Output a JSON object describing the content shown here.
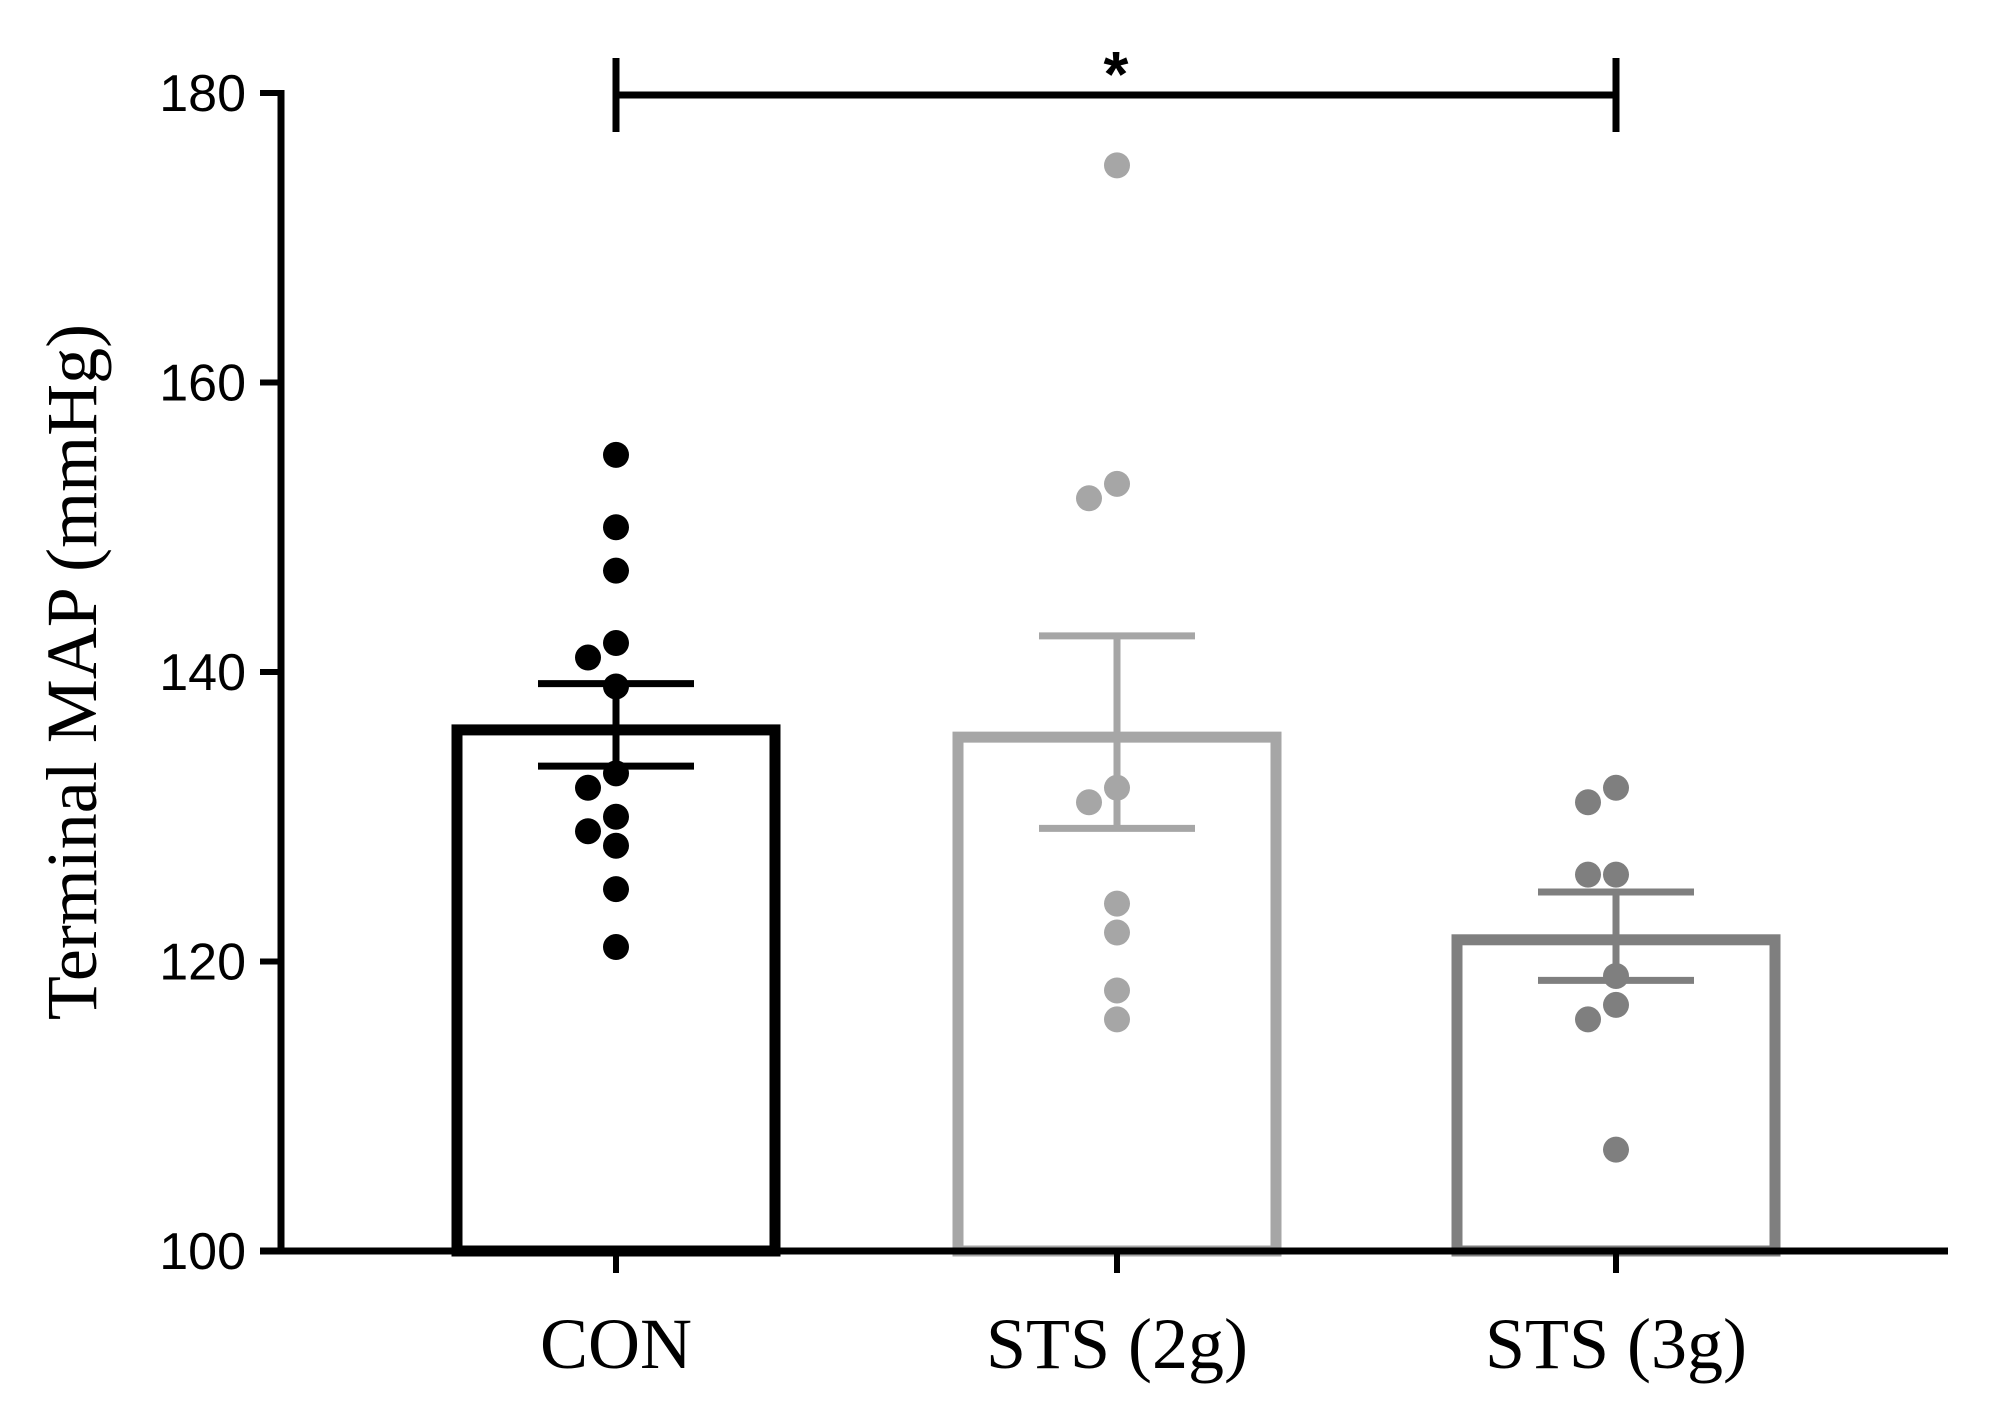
{
  "chart_data": {
    "type": "bar",
    "title": "",
    "xlabel": "",
    "ylabel": "Terminal MAP (mmHg)",
    "ylim": [
      100,
      180
    ],
    "yticks": [
      100,
      120,
      140,
      160,
      180
    ],
    "categories": [
      "CON",
      "STS (2g)",
      "STS (3g)"
    ],
    "colors": [
      "#000000",
      "#a6a6a6",
      "#7f7f7f"
    ],
    "means": [
      136,
      135.5,
      121.5
    ],
    "sem_upper": [
      139.2,
      142.5,
      124.8
    ],
    "sem_lower": [
      133.5,
      129.2,
      118.7
    ],
    "points": [
      [
        155,
        150,
        147,
        142,
        141,
        139,
        133,
        132,
        130,
        129,
        128,
        125,
        121
      ],
      [
        175,
        153,
        152,
        132,
        131,
        124,
        122,
        118,
        116
      ],
      [
        132,
        131,
        126,
        126,
        119,
        117,
        116,
        107
      ]
    ],
    "significance": {
      "from": 0,
      "to": 2,
      "label": "*"
    }
  }
}
